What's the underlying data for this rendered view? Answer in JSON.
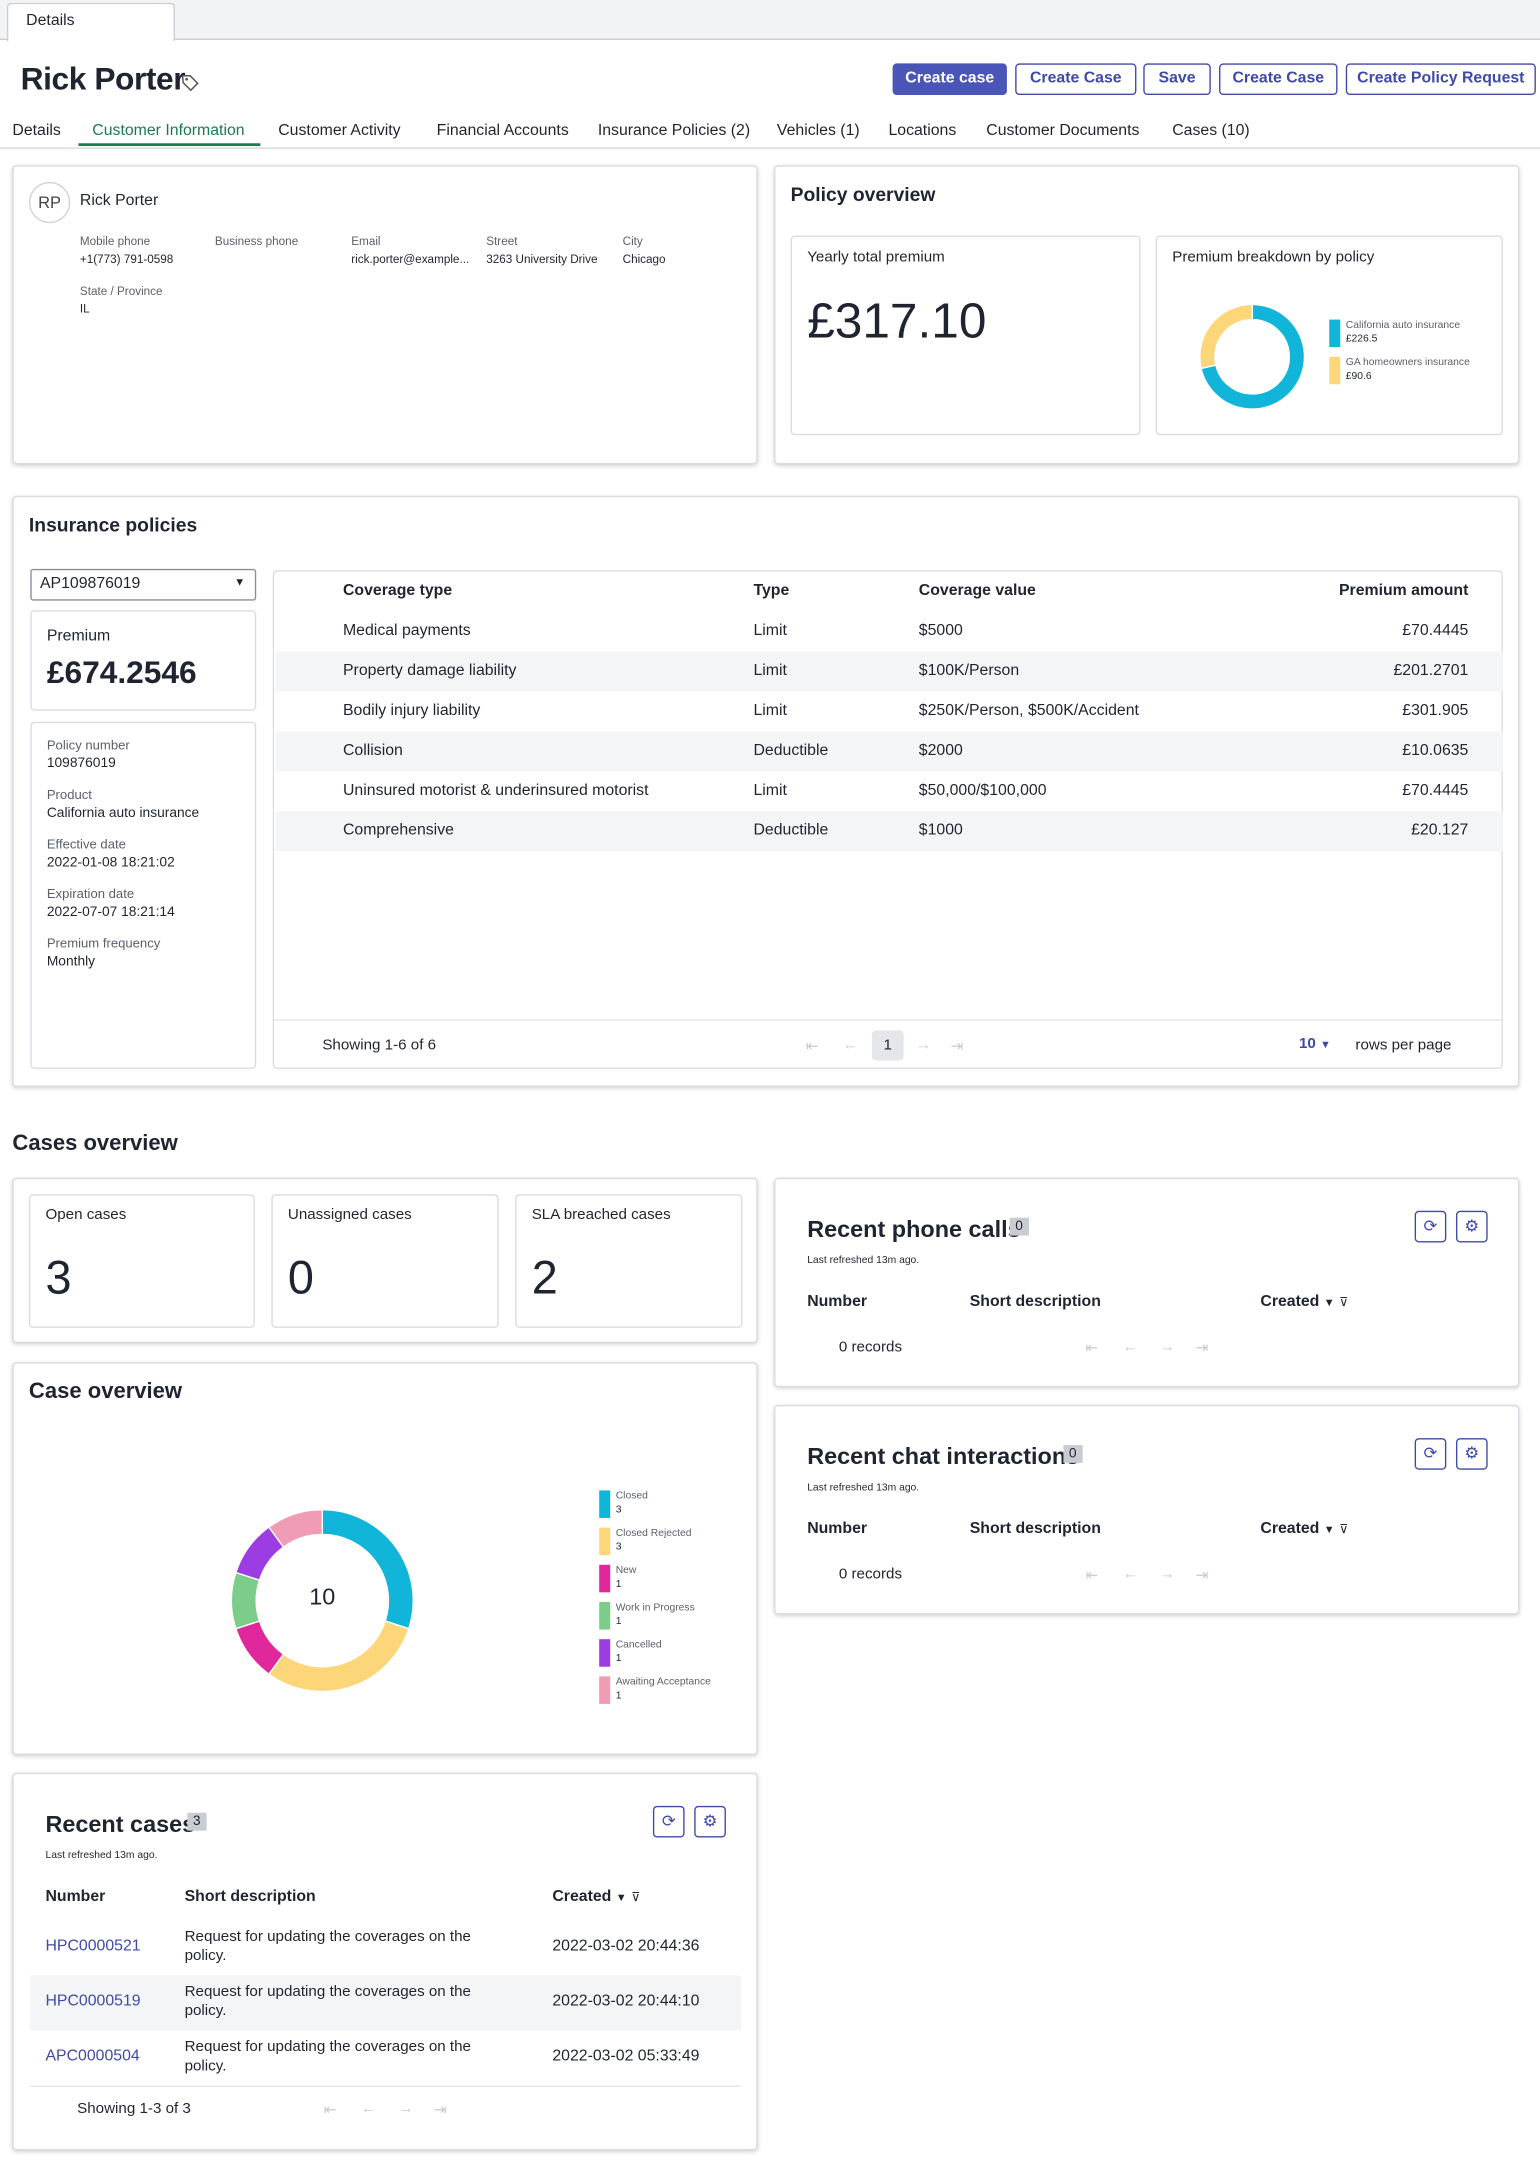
{
  "window": {
    "tab": "Details"
  },
  "header": {
    "title": "Rick Porter",
    "tag_icon": "tag-icon"
  },
  "actions": [
    {
      "label": "Create case",
      "primary": true
    },
    {
      "label": "Create Case",
      "primary": false
    },
    {
      "label": "Save",
      "primary": false
    },
    {
      "label": "Create Case",
      "primary": false
    },
    {
      "label": "Create Policy Request",
      "primary": false
    }
  ],
  "subtabs": [
    "Details",
    "Customer Information",
    "Customer Activity",
    "Financial Accounts",
    "Insurance Policies (2)",
    "Vehicles (1)",
    "Locations",
    "Customer Documents",
    "Cases (10)"
  ],
  "active_subtab": "Customer Information",
  "contact": {
    "initials": "RP",
    "name": "Rick Porter",
    "fields": [
      {
        "label": "Mobile phone",
        "value": "+1(773) 791-0598"
      },
      {
        "label": "Business phone",
        "value": ""
      },
      {
        "label": "Email",
        "value": "rick.porter@example..."
      },
      {
        "label": "Street",
        "value": "3263 University Drive"
      },
      {
        "label": "City",
        "value": "Chicago"
      },
      {
        "label": "State / Province",
        "value": "IL"
      }
    ]
  },
  "policy_overview": {
    "title": "Policy overview",
    "yearly_label": "Yearly total premium",
    "yearly_value": "£317.10",
    "breakdown_title": "Premium breakdown by policy"
  },
  "insurance": {
    "title": "Insurance policies",
    "selected_policy": "AP109876019",
    "premium_label": "Premium",
    "premium_value": "£674.2546",
    "details": [
      {
        "label": "Policy number",
        "value": "109876019"
      },
      {
        "label": "Product",
        "value": "California auto insurance"
      },
      {
        "label": "Effective date",
        "value": "2022-01-08 18:21:02"
      },
      {
        "label": "Expiration date",
        "value": "2022-07-07 18:21:14"
      },
      {
        "label": "Premium frequency",
        "value": "Monthly"
      }
    ],
    "columns": [
      "Coverage type",
      "Type",
      "Coverage value",
      "Premium amount"
    ],
    "rows": [
      [
        "Medical payments",
        "Limit",
        "$5000",
        "£70.4445"
      ],
      [
        "Property damage liability",
        "Limit",
        "$100K/Person",
        "£201.2701"
      ],
      [
        "Bodily injury liability",
        "Limit",
        "$250K/Person, $500K/Accident",
        "£301.905"
      ],
      [
        "Collision",
        "Deductible",
        "$2000",
        "£10.0635"
      ],
      [
        "Uninsured motorist & underinsured motorist",
        "Limit",
        "$50,000/$100,000",
        "£70.4445"
      ],
      [
        "Comprehensive",
        "Deductible",
        "$1000",
        "£20.127"
      ]
    ],
    "showing": "Showing 1-6 of 6",
    "page": "1",
    "rows_per_page": "10",
    "rows_per_page_label": "rows per page"
  },
  "cases": {
    "title": "Cases overview",
    "stats": [
      {
        "label": "Open cases",
        "value": "3"
      },
      {
        "label": "Unassigned cases",
        "value": "0"
      },
      {
        "label": "SLA breached cases",
        "value": "2"
      }
    ],
    "case_overview_title": "Case overview",
    "total": "10"
  },
  "phone_calls": {
    "title": "Recent phone calls",
    "count": "0",
    "refreshed": "Last refreshed 13m ago.",
    "columns": [
      "Number",
      "Short description",
      "Created"
    ],
    "empty": "0 records"
  },
  "chat": {
    "title": "Recent chat interactions",
    "count": "0",
    "refreshed": "Last refreshed 13m ago.",
    "columns": [
      "Number",
      "Short description",
      "Created"
    ],
    "empty": "0 records"
  },
  "recent_cases": {
    "title": "Recent cases",
    "count": "3",
    "refreshed": "Last refreshed 13m ago.",
    "columns": [
      "Number",
      "Short description",
      "Created"
    ],
    "rows": [
      {
        "number": "HPC0000521",
        "desc1": "Request for updating the coverages on the",
        "desc2": "policy.",
        "created": "2022-03-02 20:44:36"
      },
      {
        "number": "HPC0000519",
        "desc1": "Request for updating the coverages on the",
        "desc2": "policy.",
        "created": "2022-03-02 20:44:10"
      },
      {
        "number": "APC0000504",
        "desc1": "Request for updating the coverages on the",
        "desc2": "policy.",
        "created": "2022-03-02 05:33:49"
      }
    ],
    "showing": "Showing 1-3 of 3"
  },
  "chart_data": [
    {
      "type": "pie",
      "title": "Premium breakdown by policy",
      "categories": [
        "California auto insurance",
        "GA homeowners insurance"
      ],
      "labels": [
        "£226.5",
        "£90.6"
      ],
      "values": [
        226.5,
        90.6
      ],
      "colors": [
        "#11b5d9",
        "#fdd67a"
      ]
    },
    {
      "type": "pie",
      "title": "Case overview",
      "categories": [
        "Closed",
        "Closed Rejected",
        "New",
        "Work in Progress",
        "Cancelled",
        "Awaiting Acceptance"
      ],
      "values": [
        3,
        3,
        1,
        1,
        1,
        1
      ],
      "colors": [
        "#11b5d9",
        "#fdd67a",
        "#e0289c",
        "#7ccc8a",
        "#9b3de3",
        "#f09cb4"
      ]
    }
  ]
}
